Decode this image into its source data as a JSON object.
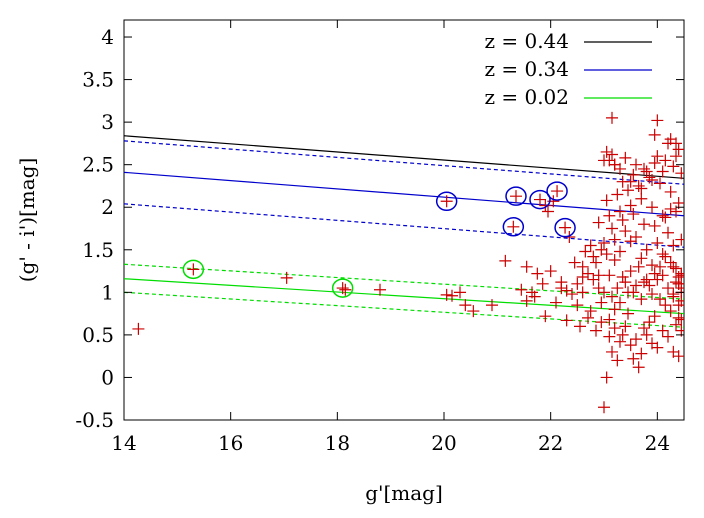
{
  "chart_data": {
    "type": "scatter",
    "xlabel": "g'[mag]",
    "ylabel": "(g' - i')[mag]",
    "xlim": [
      14,
      24.5
    ],
    "ylim": [
      -0.5,
      4.2
    ],
    "x_ticks": [
      14,
      16,
      18,
      20,
      22,
      24
    ],
    "y_ticks": [
      -0.5,
      0,
      0.5,
      1,
      1.5,
      2,
      2.5,
      3,
      3.5,
      4
    ],
    "x_tick_labels": [
      "14",
      "16",
      "18",
      "20",
      "22",
      "24"
    ],
    "y_tick_labels": [
      "-0.5",
      "0",
      "0.5",
      "1",
      "1.5",
      "2",
      "2.5",
      "3",
      "3.5",
      "4"
    ],
    "grid": false,
    "legend_position": "top-right",
    "colors": {
      "points": "#cc0000",
      "z044": "#000000",
      "z034": "#0000cc",
      "z002": "#00dd00"
    },
    "legend": [
      {
        "label": "z = 0.44",
        "color": "#000000"
      },
      {
        "label": "z = 0.34",
        "color": "#0000cc"
      },
      {
        "label": "z = 0.02",
        "color": "#00dd00"
      }
    ],
    "lines": [
      {
        "series": "z044",
        "style": "solid",
        "x": [
          14,
          24.5
        ],
        "y": [
          2.84,
          2.34
        ]
      },
      {
        "series": "z034",
        "style": "solid",
        "x": [
          14,
          24.5
        ],
        "y": [
          2.41,
          1.9
        ]
      },
      {
        "series": "z034",
        "style": "dashed",
        "x": [
          14,
          24.5
        ],
        "y": [
          2.78,
          2.27
        ]
      },
      {
        "series": "z034",
        "style": "dashed",
        "x": [
          14,
          24.5
        ],
        "y": [
          2.04,
          1.53
        ]
      },
      {
        "series": "z002",
        "style": "solid",
        "x": [
          14,
          24.5
        ],
        "y": [
          1.16,
          0.75
        ]
      },
      {
        "series": "z002",
        "style": "dashed",
        "x": [
          14,
          24.5
        ],
        "y": [
          1.33,
          0.92
        ]
      },
      {
        "series": "z002",
        "style": "dashed",
        "x": [
          14,
          24.5
        ],
        "y": [
          1.0,
          0.59
        ]
      }
    ],
    "circled": [
      {
        "series": "z034",
        "x": 20.05,
        "y": 2.07
      },
      {
        "series": "z034",
        "x": 21.35,
        "y": 2.13
      },
      {
        "series": "z034",
        "x": 21.3,
        "y": 1.77
      },
      {
        "series": "z034",
        "x": 21.8,
        "y": 2.09
      },
      {
        "series": "z034",
        "x": 22.12,
        "y": 2.19
      },
      {
        "series": "z034",
        "x": 22.27,
        "y": 1.76
      },
      {
        "series": "z002",
        "x": 15.3,
        "y": 1.27
      },
      {
        "series": "z002",
        "x": 18.1,
        "y": 1.05
      }
    ],
    "points": {
      "x": [
        14.27,
        15.3,
        17.05,
        18.1,
        18.15,
        18.8,
        20.05,
        20.05,
        20.15,
        20.3,
        20.4,
        20.55,
        20.9,
        21.15,
        21.35,
        21.3,
        21.45,
        21.55,
        21.65,
        21.8,
        21.9,
        21.95,
        22.05,
        22.12,
        22.27,
        22.35,
        21.55,
        21.75,
        21.85,
        22.0,
        22.2,
        22.45,
        22.6,
        22.65,
        22.8,
        22.9,
        21.7,
        21.9,
        22.1,
        22.3,
        22.5,
        22.6,
        22.75,
        22.95,
        22.55,
        22.7,
        22.85,
        22.95,
        23.1,
        23.2,
        23.3,
        23.15,
        23.25,
        23.05,
        23.0,
        23.1,
        23.2,
        23.35,
        23.5,
        23.4,
        23.6,
        23.7,
        23.55,
        23.65,
        23.8,
        23.9,
        24.0,
        24.1,
        24.2,
        24.3,
        24.4,
        24.45,
        24.35,
        24.25,
        24.15,
        24.05,
        23.95,
        23.85,
        23.75,
        23.45,
        23.3,
        23.15,
        23.0,
        22.9,
        22.8,
        22.7,
        22.6,
        22.5,
        22.4,
        22.3,
        22.2,
        23.25,
        23.4,
        23.55,
        23.7,
        23.85,
        24.0,
        24.1,
        24.2,
        24.3,
        24.4,
        24.45,
        24.35,
        24.25,
        24.15,
        24.05,
        23.95,
        23.8,
        23.65,
        23.5,
        23.35,
        23.2,
        23.05,
        22.95,
        22.85,
        22.75,
        23.1,
        23.3,
        23.5,
        23.7,
        23.9,
        24.1,
        24.3,
        24.45,
        24.2,
        24.0,
        23.8,
        23.6,
        23.4,
        23.2,
        23.0,
        23.15,
        23.35,
        23.55,
        23.75,
        23.95,
        24.15,
        24.35,
        24.4,
        24.25,
        24.1,
        23.9,
        23.7,
        23.5,
        23.3,
        23.1,
        22.9,
        23.05,
        23.25,
        23.45,
        23.65,
        23.85,
        24.05,
        24.25,
        24.45,
        24.3,
        24.1,
        23.9,
        23.7,
        23.5,
        23.3,
        23.1,
        23.2,
        23.4,
        23.6,
        23.8,
        24.0,
        24.2,
        24.4,
        24.35,
        24.15,
        23.95,
        23.75,
        23.55,
        23.35,
        23.15,
        24.45,
        24.4,
        24.45,
        24.3,
        24.4,
        24.45,
        24.35,
        24.4,
        24.45,
        24.3,
        24.45,
        24.4,
        23.0,
        23.05,
        23.15,
        24.0,
        23.2,
        23.95,
        24.25,
        24.35,
        23.45,
        23.6,
        23.75,
        23.9
      ],
      "y": [
        0.57,
        1.27,
        1.17,
        1.05,
        1.03,
        1.03,
        2.07,
        0.97,
        0.96,
        1.0,
        0.85,
        0.78,
        0.85,
        1.37,
        2.13,
        1.77,
        1.03,
        0.9,
        1.0,
        2.09,
        2.02,
        1.95,
        2.07,
        2.19,
        1.76,
        1.65,
        1.3,
        1.22,
        1.1,
        1.25,
        1.05,
        1.35,
        1.3,
        1.48,
        1.42,
        1.2,
        0.95,
        0.72,
        0.88,
        0.67,
        0.85,
        1.0,
        0.78,
        0.88,
        0.6,
        0.7,
        0.55,
        0.65,
        0.48,
        0.58,
        0.42,
        0.3,
        0.2,
        0.0,
        -0.35,
        0.68,
        0.8,
        0.5,
        0.38,
        0.6,
        0.45,
        0.28,
        0.22,
        0.12,
        0.5,
        0.4,
        0.35,
        0.55,
        0.48,
        0.3,
        0.25,
        0.55,
        0.62,
        0.78,
        0.85,
        0.92,
        0.72,
        0.65,
        0.58,
        0.75,
        0.88,
        0.95,
        1.0,
        1.05,
        1.15,
        1.22,
        1.18,
        1.1,
        0.98,
        1.02,
        1.12,
        1.05,
        1.12,
        1.0,
        0.92,
        1.08,
        1.15,
        1.2,
        1.05,
        0.98,
        1.1,
        1.2,
        1.28,
        1.35,
        1.42,
        1.3,
        1.22,
        1.15,
        1.3,
        1.25,
        1.18,
        1.38,
        1.45,
        1.5,
        1.35,
        1.55,
        1.2,
        1.48,
        1.6,
        1.4,
        1.32,
        1.45,
        1.55,
        1.62,
        1.7,
        1.58,
        1.5,
        1.65,
        1.72,
        1.62,
        1.58,
        1.75,
        1.85,
        1.92,
        1.8,
        1.78,
        1.88,
        1.95,
        2.05,
        1.98,
        1.9,
        2.0,
        2.1,
        2.02,
        1.95,
        1.9,
        1.82,
        2.08,
        2.15,
        2.2,
        2.25,
        2.35,
        2.28,
        2.18,
        2.4,
        2.48,
        2.42,
        2.32,
        2.22,
        2.3,
        2.45,
        2.55,
        2.5,
        2.58,
        2.5,
        2.42,
        2.6,
        2.75,
        2.68,
        2.6,
        2.55,
        2.52,
        2.45,
        2.38,
        2.3,
        2.62,
        1.0,
        1.1,
        0.9,
        0.95,
        1.18,
        1.05,
        1.12,
        0.85,
        1.22,
        1.3,
        0.68,
        0.7,
        2.55,
        2.65,
        3.05,
        3.02,
        2.5,
        2.85,
        2.8,
        2.75,
        1.0,
        1.08,
        1.12,
        0.98
      ]
    }
  }
}
